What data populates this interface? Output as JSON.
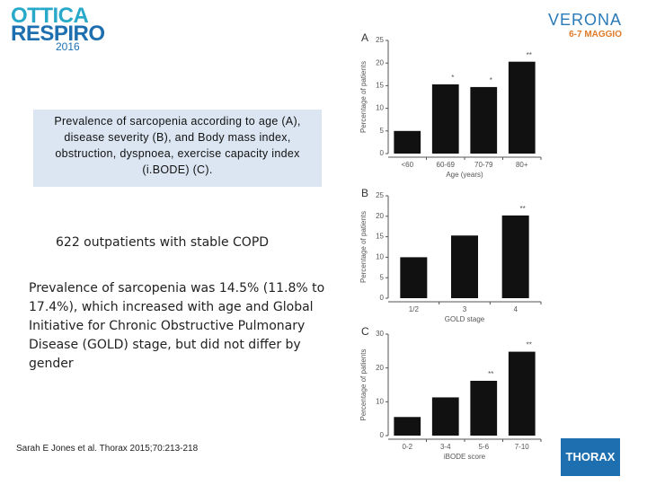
{
  "header": {
    "logo_line1": "OTTICA",
    "logo_line2": "RESPIRO",
    "logo_year": "2016",
    "venue": "VERONA",
    "dates": "6-7 MAGGIO"
  },
  "caption": "Prevalence of sarcopenia according to age (A), disease severity (B), and Body mass index, obstruction, dyspnoea, exercise capacity index (i.BODE) (C).",
  "body": {
    "population": "622 outpatients with stable COPD",
    "finding": "Prevalence of sarcopenia was 14.5% (11.8% to 17.4%), which increased with age and Global Initiative for Chronic Obstructive Pulmonary Disease (GOLD) stage, but did not differ by gender"
  },
  "citation": "Sarah E  Jones et al. Thorax 2015;70:213-218",
  "journal": "THORAX",
  "chart_data": [
    {
      "type": "bar",
      "title": "A",
      "ylabel": "Percentage of patients",
      "xlabel": "Age (years)",
      "categories": [
        "<60",
        "60-69",
        "70-79",
        "80+"
      ],
      "values": [
        5,
        15.3,
        14.7,
        20.3
      ],
      "annotations": [
        null,
        "*",
        "*",
        "**"
      ],
      "color": "#111111",
      "ylim": [
        0,
        25
      ],
      "yticks": [
        0,
        5,
        10,
        15,
        20,
        25
      ]
    },
    {
      "type": "bar",
      "title": "B",
      "ylabel": "Percentage of patients",
      "xlabel": "GOLD stage",
      "categories": [
        "1/2",
        "3",
        "4"
      ],
      "values": [
        10,
        15.3,
        20.2
      ],
      "annotations": [
        null,
        null,
        "**"
      ],
      "color": "#111111",
      "ylim": [
        0,
        25
      ],
      "yticks": [
        0,
        5,
        10,
        15,
        20,
        25
      ]
    },
    {
      "type": "bar",
      "title": "C",
      "ylabel": "Percentage of patients",
      "xlabel": "iBODE score",
      "categories": [
        "0-2",
        "3-4",
        "5-6",
        "7-10"
      ],
      "values": [
        5.5,
        11.3,
        16.2,
        24.8
      ],
      "annotations": [
        null,
        null,
        "**",
        "**"
      ],
      "color": "#111111",
      "ylim": [
        0,
        30
      ],
      "yticks": [
        0,
        10,
        20,
        30
      ]
    }
  ]
}
